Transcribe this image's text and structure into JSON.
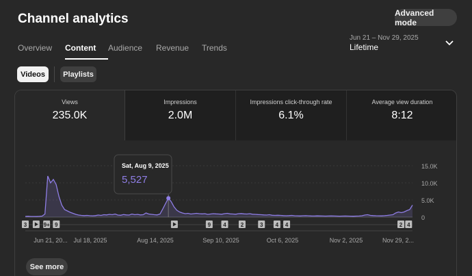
{
  "header": {
    "title": "Channel analytics",
    "advanced_label": "Advanced mode"
  },
  "tabs": [
    "Overview",
    "Content",
    "Audience",
    "Revenue",
    "Trends"
  ],
  "active_tab": "Content",
  "date": {
    "range": "Jun 21 – Nov 29, 2025",
    "value": "Lifetime"
  },
  "toggles": {
    "videos": "Videos",
    "playlists": "Playlists"
  },
  "metrics": [
    {
      "label": "Views",
      "value": "235.0K"
    },
    {
      "label": "Impressions",
      "value": "2.0M"
    },
    {
      "label": "Impressions click-through rate",
      "value": "6.1%"
    },
    {
      "label": "Average view duration",
      "value": "8:12"
    }
  ],
  "chart_data": {
    "type": "area",
    "title": "Views",
    "x_start": "Jun 21, 2025",
    "x_end": "Nov 29, 2025",
    "ylim": [
      0,
      15000
    ],
    "y_ticks": [
      0,
      5000,
      10000,
      15000
    ],
    "y_tick_labels": [
      "0",
      "5.0K",
      "10.0K",
      "15.0K"
    ],
    "x_tick_labels": [
      "Jun 21, 20...",
      "Jul 18, 2025",
      "Aug 14, 2025",
      "Sep 10, 2025",
      "Oct 6, 2025",
      "Nov 2, 2025",
      "Nov 29, 2..."
    ],
    "values": [
      200,
      250,
      180,
      170,
      160,
      220,
      300,
      900,
      12000,
      10000,
      11000,
      9500,
      6000,
      3500,
      2200,
      1800,
      1400,
      1100,
      800,
      600,
      500,
      450,
      500,
      420,
      380,
      450,
      600,
      500,
      700,
      650,
      800,
      700,
      900,
      600,
      550,
      750,
      650,
      600,
      900,
      700,
      800,
      650,
      700,
      1200,
      900,
      800,
      700,
      650,
      900,
      2400,
      4000,
      5527,
      4500,
      3000,
      2000,
      1500,
      1200,
      1000,
      1100,
      900,
      1000,
      1100,
      1000,
      950,
      1000,
      800,
      900,
      1000,
      950,
      900,
      850,
      1000,
      1100,
      950,
      900,
      850,
      1000,
      1050,
      950,
      900,
      1000,
      850,
      800,
      750,
      700,
      650,
      600,
      700,
      550,
      500,
      550,
      500,
      450,
      400,
      450,
      500,
      400,
      380,
      350,
      400,
      420,
      380,
      350,
      330,
      360,
      350,
      330,
      300,
      320,
      340,
      320,
      300,
      280,
      300,
      320,
      300,
      280,
      260,
      300,
      320,
      400,
      600,
      700,
      500,
      450,
      400,
      380,
      360,
      420,
      500,
      600,
      700,
      1200,
      1500,
      1300,
      1500,
      1900,
      2200,
      3500
    ],
    "tooltip": {
      "date": "Sat, Aug 9, 2025",
      "value": "5,527",
      "index": 51
    },
    "markers": [
      {
        "label": "3",
        "kind": "box",
        "pos": 0.0
      },
      {
        "label": "",
        "kind": "play",
        "pos": 0.028
      },
      {
        "label": "9+",
        "kind": "box",
        "pos": 0.055
      },
      {
        "label": "9",
        "kind": "box",
        "pos": 0.08
      },
      {
        "label": "",
        "kind": "play",
        "pos": 0.385
      },
      {
        "label": "9",
        "kind": "box",
        "pos": 0.475
      },
      {
        "label": "4",
        "kind": "box",
        "pos": 0.515
      },
      {
        "label": "2",
        "kind": "box",
        "pos": 0.56
      },
      {
        "label": "3",
        "kind": "box",
        "pos": 0.61
      },
      {
        "label": "4",
        "kind": "box",
        "pos": 0.65
      },
      {
        "label": "4",
        "kind": "box",
        "pos": 0.675
      },
      {
        "label": "2",
        "kind": "box",
        "pos": 0.97
      },
      {
        "label": "4",
        "kind": "box",
        "pos": 0.99
      }
    ],
    "line_color": "#8f7ee6",
    "fill_color": "#8f7ee6"
  },
  "footer": {
    "see_more": "See more"
  }
}
